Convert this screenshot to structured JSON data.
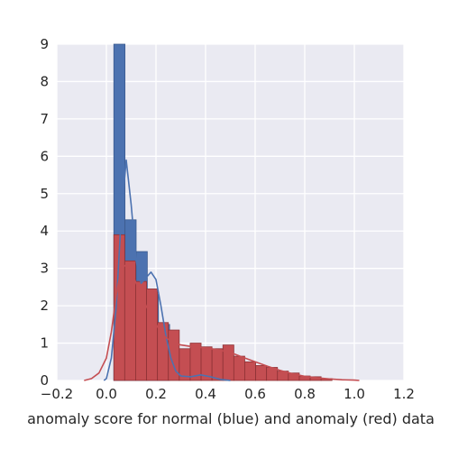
{
  "chart_data": {
    "type": "bar",
    "title": "",
    "xlabel": "anomaly score for normal (blue) and anomaly (red) data",
    "ylabel": "",
    "xlim": [
      -0.2,
      1.2
    ],
    "ylim": [
      0,
      9
    ],
    "grid": true,
    "xticks": [
      "−0.2",
      "0.0",
      "0.2",
      "0.4",
      "0.6",
      "0.8",
      "1.0",
      "1.2"
    ],
    "xtick_values": [
      -0.2,
      0.0,
      0.2,
      0.4,
      0.6,
      0.8,
      1.0,
      1.2
    ],
    "yticks": [
      "0",
      "1",
      "2",
      "3",
      "4",
      "5",
      "6",
      "7",
      "8",
      "9"
    ],
    "ytick_values": [
      0,
      1,
      2,
      3,
      4,
      5,
      6,
      7,
      8,
      9
    ],
    "colors": {
      "plot_background": "#EAEAF2",
      "grid": "#FFFFFF",
      "blue_fill": "#4C72B0",
      "blue_edge": "#3A5A8E",
      "red_fill": "#C44E52",
      "red_edge": "#8E3236"
    },
    "series": [
      {
        "kind": "histogram",
        "color": "#4C72B0",
        "bins": [
          {
            "x0": 0.03,
            "x1": 0.075,
            "y": 9.0
          },
          {
            "x0": 0.075,
            "x1": 0.12,
            "y": 4.3
          },
          {
            "x0": 0.12,
            "x1": 0.165,
            "y": 3.45
          },
          {
            "x0": 0.165,
            "x1": 0.21,
            "y": 2.3
          },
          {
            "x0": 0.21,
            "x1": 0.255,
            "y": 1.5
          }
        ]
      },
      {
        "kind": "histogram",
        "color": "#C44E52",
        "bins": [
          {
            "x0": 0.03,
            "x1": 0.074,
            "y": 3.9
          },
          {
            "x0": 0.074,
            "x1": 0.118,
            "y": 3.2
          },
          {
            "x0": 0.118,
            "x1": 0.162,
            "y": 2.65
          },
          {
            "x0": 0.162,
            "x1": 0.206,
            "y": 2.45
          },
          {
            "x0": 0.206,
            "x1": 0.25,
            "y": 1.55
          },
          {
            "x0": 0.25,
            "x1": 0.294,
            "y": 1.35
          },
          {
            "x0": 0.294,
            "x1": 0.338,
            "y": 0.85
          },
          {
            "x0": 0.338,
            "x1": 0.382,
            "y": 1.0
          },
          {
            "x0": 0.382,
            "x1": 0.426,
            "y": 0.9
          },
          {
            "x0": 0.426,
            "x1": 0.47,
            "y": 0.85
          },
          {
            "x0": 0.47,
            "x1": 0.514,
            "y": 0.95
          },
          {
            "x0": 0.514,
            "x1": 0.558,
            "y": 0.65
          },
          {
            "x0": 0.558,
            "x1": 0.602,
            "y": 0.5
          },
          {
            "x0": 0.602,
            "x1": 0.646,
            "y": 0.4
          },
          {
            "x0": 0.646,
            "x1": 0.69,
            "y": 0.35
          },
          {
            "x0": 0.69,
            "x1": 0.734,
            "y": 0.25
          },
          {
            "x0": 0.734,
            "x1": 0.778,
            "y": 0.2
          },
          {
            "x0": 0.778,
            "x1": 0.822,
            "y": 0.12
          },
          {
            "x0": 0.822,
            "x1": 0.866,
            "y": 0.1
          },
          {
            "x0": 0.866,
            "x1": 0.91,
            "y": 0.05
          }
        ]
      },
      {
        "kind": "kde",
        "color": "#4C72B0",
        "points": [
          [
            -0.01,
            0.0
          ],
          [
            0.0,
            0.05
          ],
          [
            0.02,
            0.6
          ],
          [
            0.04,
            2.0
          ],
          [
            0.06,
            4.4
          ],
          [
            0.08,
            5.9
          ],
          [
            0.1,
            4.7
          ],
          [
            0.12,
            3.2
          ],
          [
            0.14,
            2.6
          ],
          [
            0.16,
            2.75
          ],
          [
            0.18,
            2.9
          ],
          [
            0.2,
            2.7
          ],
          [
            0.22,
            2.0
          ],
          [
            0.24,
            1.2
          ],
          [
            0.26,
            0.6
          ],
          [
            0.28,
            0.25
          ],
          [
            0.3,
            0.12
          ],
          [
            0.34,
            0.1
          ],
          [
            0.38,
            0.15
          ],
          [
            0.42,
            0.1
          ],
          [
            0.46,
            0.03
          ],
          [
            0.5,
            0.0
          ]
        ]
      },
      {
        "kind": "kde",
        "color": "#C44E52",
        "points": [
          [
            -0.09,
            0.0
          ],
          [
            -0.06,
            0.05
          ],
          [
            -0.03,
            0.2
          ],
          [
            0.0,
            0.6
          ],
          [
            0.02,
            1.3
          ],
          [
            0.04,
            2.3
          ],
          [
            0.06,
            3.0
          ],
          [
            0.08,
            3.1
          ],
          [
            0.1,
            2.9
          ],
          [
            0.12,
            2.6
          ],
          [
            0.14,
            2.3
          ],
          [
            0.16,
            2.0
          ],
          [
            0.18,
            1.75
          ],
          [
            0.2,
            1.5
          ],
          [
            0.22,
            1.3
          ],
          [
            0.24,
            1.15
          ],
          [
            0.26,
            1.05
          ],
          [
            0.3,
            0.95
          ],
          [
            0.35,
            0.9
          ],
          [
            0.4,
            0.87
          ],
          [
            0.45,
            0.82
          ],
          [
            0.5,
            0.75
          ],
          [
            0.55,
            0.62
          ],
          [
            0.6,
            0.5
          ],
          [
            0.65,
            0.38
          ],
          [
            0.7,
            0.27
          ],
          [
            0.75,
            0.18
          ],
          [
            0.8,
            0.11
          ],
          [
            0.85,
            0.07
          ],
          [
            0.9,
            0.04
          ],
          [
            0.95,
            0.02
          ],
          [
            1.0,
            0.01
          ],
          [
            1.02,
            0.0
          ]
        ]
      }
    ]
  }
}
